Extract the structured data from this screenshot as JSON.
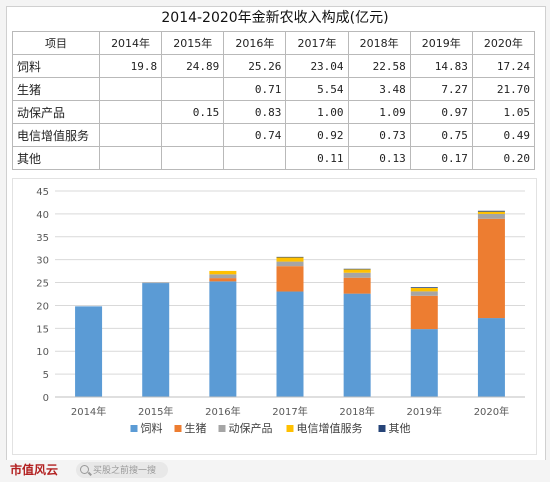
{
  "title": "2014-2020年金新农收入构成(亿元)",
  "table": {
    "header": [
      "项目",
      "2014年",
      "2015年",
      "2016年",
      "2017年",
      "2018年",
      "2019年",
      "2020年"
    ],
    "rows": [
      {
        "label": "饲料",
        "values": [
          "19.8",
          "24.89",
          "25.26",
          "23.04",
          "22.58",
          "14.83",
          "17.24"
        ]
      },
      {
        "label": "生猪",
        "values": [
          "",
          "",
          "0.71",
          "5.54",
          "3.48",
          "7.27",
          "21.70"
        ]
      },
      {
        "label": "动保产品",
        "values": [
          "",
          "0.15",
          "0.83",
          "1.00",
          "1.09",
          "0.97",
          "1.05"
        ]
      },
      {
        "label": "电信增值服务",
        "values": [
          "",
          "",
          "0.74",
          "0.92",
          "0.73",
          "0.75",
          "0.49"
        ]
      },
      {
        "label": "其他",
        "values": [
          "",
          "",
          "",
          "0.11",
          "0.13",
          "0.17",
          "0.20"
        ]
      }
    ]
  },
  "chart_data": {
    "type": "bar",
    "stacked": true,
    "title": "2014-2020年金新农收入构成(亿元)",
    "categories": [
      "2014年",
      "2015年",
      "2016年",
      "2017年",
      "2018年",
      "2019年",
      "2020年"
    ],
    "series": [
      {
        "name": "饲料",
        "color": "#5b9bd5",
        "values": [
          19.8,
          24.89,
          25.26,
          23.04,
          22.58,
          14.83,
          17.24
        ]
      },
      {
        "name": "生猪",
        "color": "#ed7d31",
        "values": [
          0,
          0,
          0.71,
          5.54,
          3.48,
          7.27,
          21.7
        ]
      },
      {
        "name": "动保产品",
        "color": "#a5a5a5",
        "values": [
          0,
          0.15,
          0.83,
          1.0,
          1.09,
          0.97,
          1.05
        ]
      },
      {
        "name": "电信增值服务",
        "color": "#ffc000",
        "values": [
          0,
          0,
          0.74,
          0.92,
          0.73,
          0.75,
          0.49
        ]
      },
      {
        "name": "其他",
        "color": "#264478",
        "values": [
          0,
          0,
          0,
          0.11,
          0.13,
          0.17,
          0.2
        ]
      }
    ],
    "yticks": [
      "0",
      "5",
      "10",
      "15",
      "20",
      "25",
      "30",
      "35",
      "40",
      "45"
    ],
    "ylim": [
      0,
      45
    ],
    "grid": true,
    "legend_position": "bottom"
  },
  "footer": {
    "brand": "市值风云",
    "search_placeholder": "买股之前搜一搜"
  }
}
